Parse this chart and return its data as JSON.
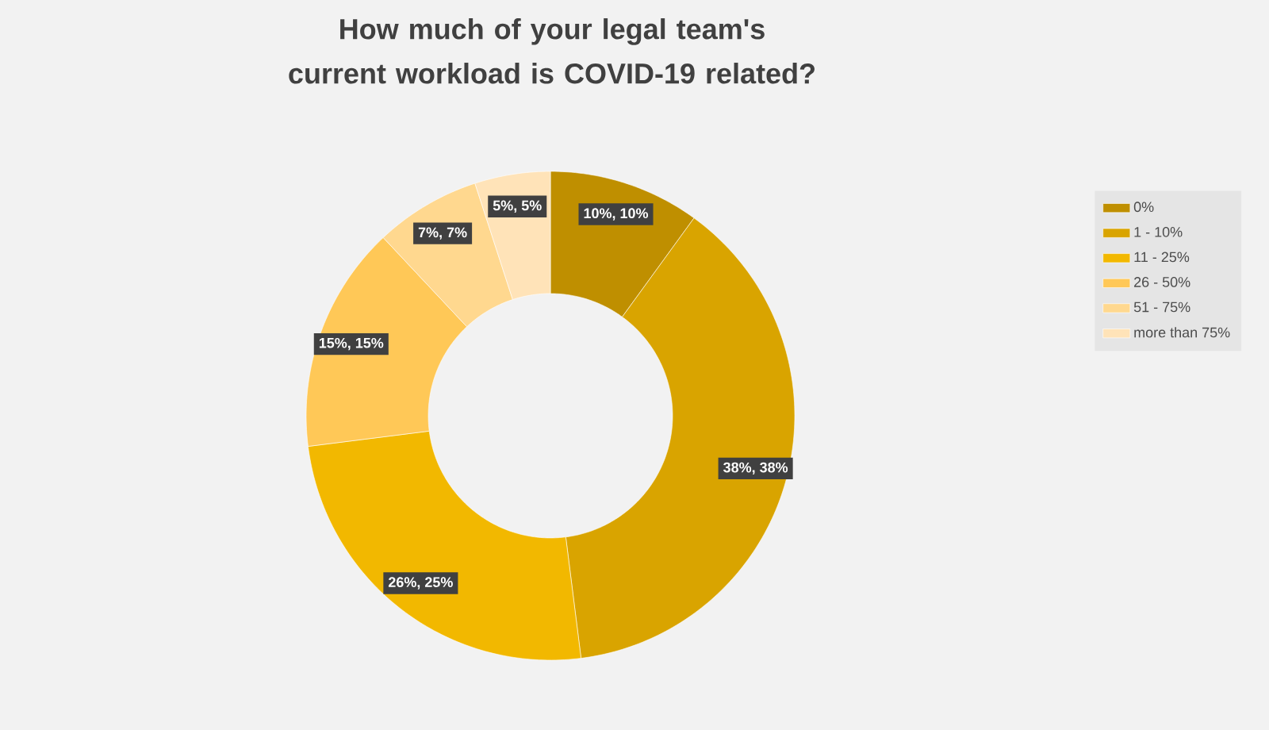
{
  "chart_data": {
    "type": "donut",
    "title": "How much of your legal team's current workload is COVID-19 related?",
    "categories": [
      "0%",
      "1 - 10%",
      "11 - 25%",
      "26 - 50%",
      "51 - 75%",
      "more than 75%"
    ],
    "values": [
      10,
      38,
      25,
      15,
      7,
      5
    ],
    "colors": [
      "#bf8f00",
      "#d9a400",
      "#f2b800",
      "#ffc857",
      "#ffd88f",
      "#ffe3b8"
    ],
    "value_labels": [
      "10%, 10%",
      "38%, 38%",
      "26%, 25%",
      "15%, 15%",
      "7%, 7%",
      "5%, 5%"
    ],
    "legend": "right"
  }
}
